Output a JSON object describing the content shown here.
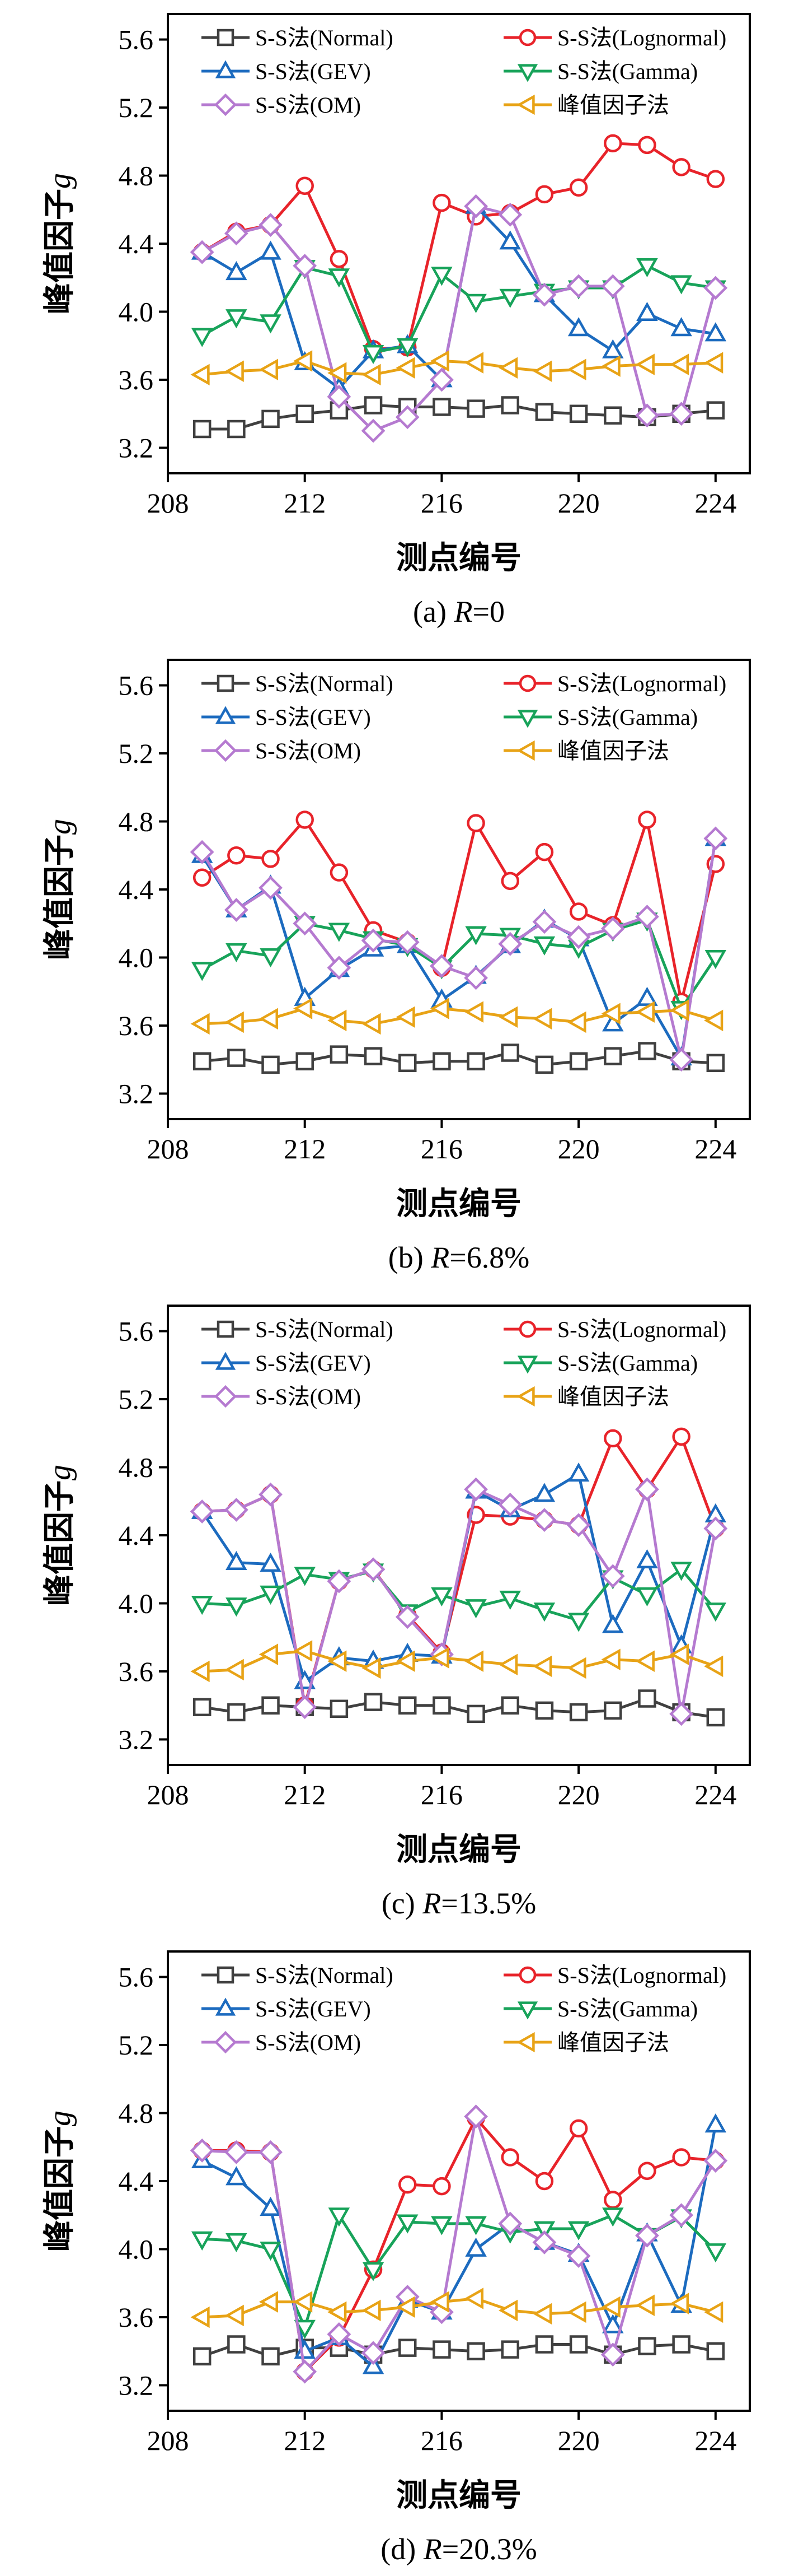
{
  "legend_labels": [
    "S-S法(Normal)",
    "S-S法(Lognormal)",
    "S-S法(GEV)",
    "S-S法(Gamma)",
    "S-S法(OM)",
    "峰值因子法"
  ],
  "series_colors": [
    "#404040",
    "#e8232a",
    "#1c6bbf",
    "#18a35a",
    "#b57ad0",
    "#e8a316"
  ],
  "series_markers": [
    "square",
    "circle",
    "triangle-up",
    "triangle-down",
    "diamond",
    "triangle-left"
  ],
  "chart_data": [
    {
      "type": "line",
      "caption_prefix": "(a) ",
      "caption_var": "R",
      "caption_value": "=0",
      "xlabel": "测点编号",
      "ylabel": "峰值因子",
      "ylabel_var": "g",
      "xlim": [
        208,
        225
      ],
      "ylim": [
        3.05,
        5.75
      ],
      "xticks": [
        208,
        212,
        216,
        220,
        224
      ],
      "yticks": [
        3.2,
        3.6,
        4.0,
        4.4,
        4.8,
        5.2,
        5.6
      ],
      "x": [
        209,
        210,
        211,
        212,
        213,
        214,
        215,
        216,
        217,
        218,
        219,
        220,
        221,
        222,
        223,
        224
      ],
      "series": [
        {
          "name": "S-S法(Normal)",
          "values": [
            3.31,
            3.31,
            3.37,
            3.4,
            3.42,
            3.45,
            3.44,
            3.44,
            3.43,
            3.45,
            3.41,
            3.4,
            3.39,
            3.38,
            3.4,
            3.42
          ]
        },
        {
          "name": "S-S法(Lognormal)",
          "values": [
            4.35,
            4.47,
            4.51,
            4.74,
            4.31,
            3.78,
            3.79,
            4.64,
            4.56,
            4.58,
            4.69,
            4.73,
            4.99,
            4.98,
            4.85,
            4.78
          ]
        },
        {
          "name": "S-S法(GEV)",
          "values": [
            4.35,
            4.23,
            4.35,
            3.7,
            3.55,
            3.77,
            3.8,
            3.6,
            4.62,
            4.41,
            4.1,
            3.9,
            3.77,
            3.99,
            3.9,
            3.87
          ]
        },
        {
          "name": "S-S法(Gamma)",
          "values": [
            3.86,
            3.97,
            3.94,
            4.26,
            4.21,
            3.76,
            3.8,
            4.22,
            4.06,
            4.09,
            4.12,
            4.14,
            4.14,
            4.27,
            4.17,
            4.14
          ]
        },
        {
          "name": "S-S法(OM)",
          "values": [
            4.35,
            4.46,
            4.51,
            4.27,
            3.5,
            3.3,
            3.38,
            3.6,
            4.62,
            4.57,
            4.1,
            4.15,
            4.15,
            3.39,
            3.4,
            4.14
          ]
        },
        {
          "name": "峰值因子法",
          "values": [
            3.63,
            3.65,
            3.66,
            3.71,
            3.64,
            3.63,
            3.67,
            3.71,
            3.7,
            3.67,
            3.65,
            3.66,
            3.68,
            3.69,
            3.69,
            3.7
          ]
        }
      ]
    },
    {
      "type": "line",
      "caption_prefix": "(b) ",
      "caption_var": "R",
      "caption_value": "=6.8%",
      "xlabel": "测点编号",
      "ylabel": "峰值因子",
      "ylabel_var": "g",
      "xlim": [
        208,
        225
      ],
      "ylim": [
        3.05,
        5.75
      ],
      "xticks": [
        208,
        212,
        216,
        220,
        224
      ],
      "yticks": [
        3.2,
        3.6,
        4.0,
        4.4,
        4.8,
        5.2,
        5.6
      ],
      "x": [
        209,
        210,
        211,
        212,
        213,
        214,
        215,
        216,
        217,
        218,
        219,
        220,
        221,
        222,
        223,
        224
      ],
      "series": [
        {
          "name": "S-S法(Normal)",
          "values": [
            3.39,
            3.41,
            3.37,
            3.39,
            3.43,
            3.42,
            3.38,
            3.39,
            3.39,
            3.44,
            3.37,
            3.39,
            3.42,
            3.45,
            3.39,
            3.38
          ]
        },
        {
          "name": "S-S法(Lognormal)",
          "values": [
            4.47,
            4.6,
            4.58,
            4.81,
            4.5,
            4.16,
            4.09,
            3.94,
            4.79,
            4.45,
            4.62,
            4.27,
            4.19,
            4.81,
            3.74,
            4.55
          ]
        },
        {
          "name": "S-S法(GEV)",
          "values": [
            4.6,
            4.28,
            4.42,
            3.76,
            3.93,
            4.05,
            4.07,
            3.75,
            3.89,
            4.07,
            4.22,
            4.11,
            3.61,
            3.76,
            3.41,
            4.7
          ]
        },
        {
          "name": "S-S法(Gamma)",
          "values": [
            3.93,
            4.04,
            4.01,
            4.2,
            4.16,
            4.11,
            4.07,
            3.94,
            4.14,
            4.13,
            4.08,
            4.06,
            4.16,
            4.22,
            3.7,
            4.0
          ]
        },
        {
          "name": "S-S法(OM)",
          "values": [
            4.62,
            4.28,
            4.41,
            4.2,
            3.94,
            4.1,
            4.09,
            3.95,
            3.88,
            4.08,
            4.21,
            4.12,
            4.17,
            4.24,
            3.4,
            4.7
          ]
        },
        {
          "name": "峰值因子法",
          "values": [
            3.61,
            3.62,
            3.64,
            3.7,
            3.63,
            3.61,
            3.65,
            3.7,
            3.68,
            3.65,
            3.64,
            3.62,
            3.67,
            3.68,
            3.69,
            3.63
          ]
        }
      ]
    },
    {
      "type": "line",
      "caption_prefix": "(c) ",
      "caption_var": "R",
      "caption_value": "=13.5%",
      "xlabel": "测点编号",
      "ylabel": "峰值因子",
      "ylabel_var": "g",
      "xlim": [
        208,
        225
      ],
      "ylim": [
        3.05,
        5.75
      ],
      "xticks": [
        208,
        212,
        216,
        220,
        224
      ],
      "yticks": [
        3.2,
        3.6,
        4.0,
        4.4,
        4.8,
        5.2,
        5.6
      ],
      "x": [
        209,
        210,
        211,
        212,
        213,
        214,
        215,
        216,
        217,
        218,
        219,
        220,
        221,
        222,
        223,
        224
      ],
      "series": [
        {
          "name": "S-S法(Normal)",
          "values": [
            3.39,
            3.36,
            3.4,
            3.39,
            3.38,
            3.42,
            3.4,
            3.4,
            3.35,
            3.4,
            3.37,
            3.36,
            3.37,
            3.44,
            3.36,
            3.33
          ]
        },
        {
          "name": "S-S法(Lognormal)",
          "values": [
            4.54,
            4.55,
            4.64,
            3.4,
            4.13,
            4.2,
            3.93,
            3.71,
            4.52,
            4.51,
            4.49,
            4.46,
            4.97,
            4.67,
            4.98,
            4.44
          ]
        },
        {
          "name": "S-S法(GEV)",
          "values": [
            4.54,
            4.24,
            4.23,
            3.54,
            3.68,
            3.66,
            3.7,
            3.69,
            4.66,
            4.55,
            4.64,
            4.76,
            3.87,
            4.25,
            3.75,
            4.52
          ]
        },
        {
          "name": "S-S法(Gamma)",
          "values": [
            4.0,
            3.99,
            4.06,
            4.17,
            4.14,
            4.19,
            3.95,
            4.05,
            3.98,
            4.03,
            3.96,
            3.9,
            4.15,
            4.05,
            4.2,
            3.96
          ]
        },
        {
          "name": "S-S法(OM)",
          "values": [
            4.54,
            4.55,
            4.64,
            3.39,
            4.13,
            4.2,
            3.92,
            3.7,
            4.67,
            4.58,
            4.49,
            4.46,
            4.16,
            4.67,
            3.35,
            4.44
          ]
        },
        {
          "name": "峰值因子法",
          "values": [
            3.6,
            3.61,
            3.7,
            3.72,
            3.66,
            3.62,
            3.66,
            3.68,
            3.66,
            3.64,
            3.63,
            3.62,
            3.67,
            3.66,
            3.7,
            3.63
          ]
        }
      ]
    },
    {
      "type": "line",
      "caption_prefix": "(d) ",
      "caption_var": "R",
      "caption_value": "=20.3%",
      "xlabel": "测点编号",
      "ylabel": "峰值因子",
      "ylabel_var": "g",
      "xlim": [
        208,
        225
      ],
      "ylim": [
        3.05,
        5.75
      ],
      "xticks": [
        208,
        212,
        216,
        220,
        224
      ],
      "yticks": [
        3.2,
        3.6,
        4.0,
        4.4,
        4.8,
        5.2,
        5.6
      ],
      "x": [
        209,
        210,
        211,
        212,
        213,
        214,
        215,
        216,
        217,
        218,
        219,
        220,
        221,
        222,
        223,
        224
      ],
      "series": [
        {
          "name": "S-S法(Normal)",
          "values": [
            3.37,
            3.44,
            3.37,
            3.42,
            3.42,
            3.38,
            3.42,
            3.41,
            3.4,
            3.41,
            3.44,
            3.44,
            3.38,
            3.43,
            3.44,
            3.4
          ]
        },
        {
          "name": "S-S法(Lognormal)",
          "values": [
            4.58,
            4.58,
            4.57,
            3.28,
            3.48,
            3.88,
            4.38,
            4.37,
            4.77,
            4.54,
            4.4,
            4.71,
            4.29,
            4.46,
            4.54,
            4.52
          ]
        },
        {
          "name": "S-S法(GEV)",
          "values": [
            4.52,
            4.42,
            4.24,
            3.4,
            3.48,
            3.31,
            3.7,
            3.63,
            4.0,
            4.15,
            4.04,
            3.97,
            3.55,
            4.09,
            3.67,
            4.73
          ]
        },
        {
          "name": "S-S法(Gamma)",
          "values": [
            4.06,
            4.05,
            4.0,
            3.54,
            4.2,
            3.88,
            4.16,
            4.15,
            4.15,
            4.1,
            4.12,
            4.12,
            4.2,
            4.08,
            4.19,
            3.99
          ]
        },
        {
          "name": "S-S法(OM)",
          "values": [
            4.58,
            4.57,
            4.57,
            3.28,
            3.5,
            3.39,
            3.72,
            3.63,
            4.78,
            4.15,
            4.04,
            3.96,
            3.38,
            4.08,
            4.2,
            4.52
          ]
        },
        {
          "name": "峰值因子法",
          "values": [
            3.6,
            3.61,
            3.69,
            3.69,
            3.63,
            3.64,
            3.66,
            3.69,
            3.71,
            3.64,
            3.62,
            3.63,
            3.66,
            3.67,
            3.68,
            3.63
          ]
        }
      ]
    }
  ]
}
